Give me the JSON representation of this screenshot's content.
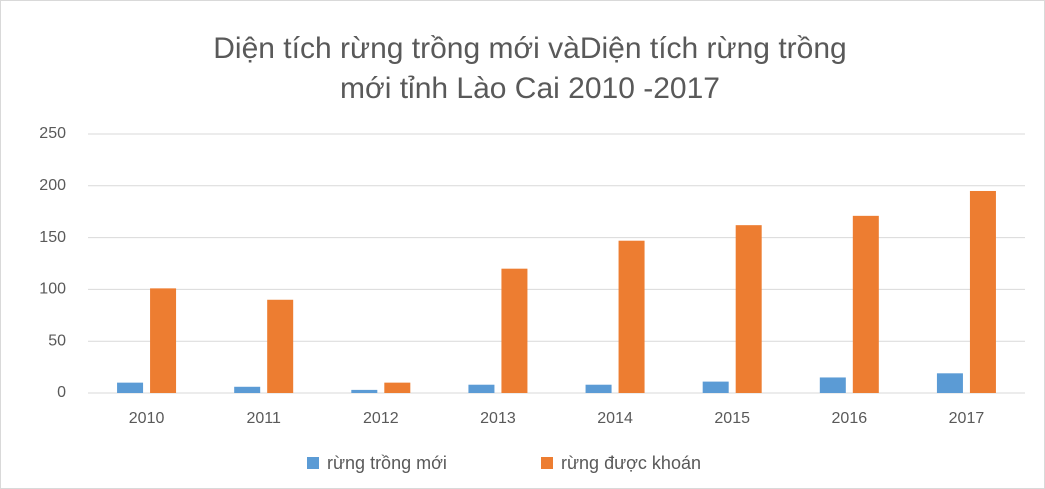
{
  "chart_data": {
    "type": "bar",
    "title": [
      "Diện tích rừng trồng mới vàDiện tích rừng trồng",
      "mới tỉnh Lào Cai  2010 -2017"
    ],
    "categories": [
      "2010",
      "2011",
      "2012",
      "2013",
      "2014",
      "2015",
      "2016",
      "2017"
    ],
    "series": [
      {
        "name": "rừng trồng mới",
        "color": "#5b9bd5",
        "values": [
          10,
          6,
          3,
          8,
          8,
          11,
          15,
          19
        ]
      },
      {
        "name": "rừng được khoán",
        "color": "#ed7d31",
        "values": [
          101,
          90,
          10,
          120,
          147,
          162,
          171,
          195
        ]
      }
    ],
    "ylim": [
      0,
      250
    ],
    "yticks": [
      0,
      50,
      100,
      150,
      200,
      250
    ],
    "grid": true,
    "legend": "bottom"
  }
}
